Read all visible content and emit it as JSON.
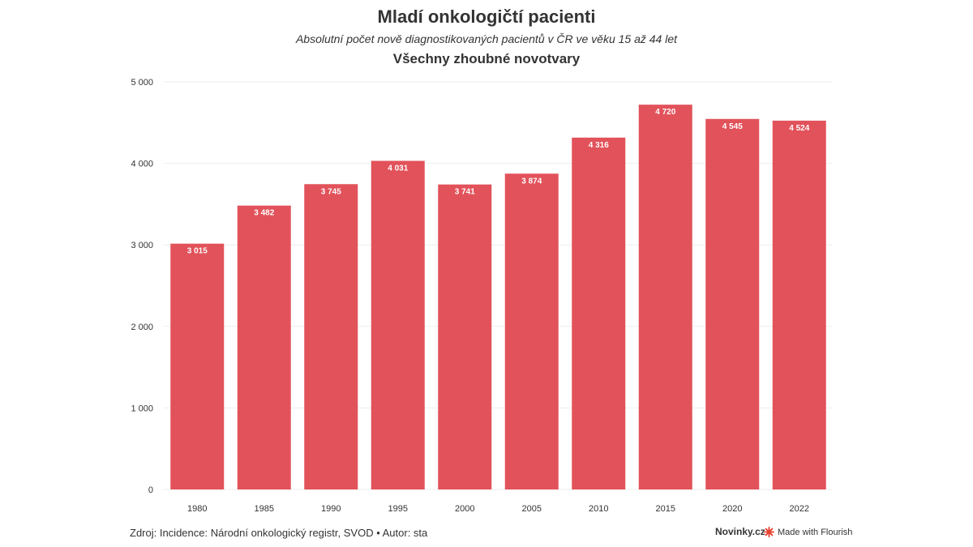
{
  "header": {
    "title": "Mladí onkologičtí pacienti",
    "subtitle": "Absolutní počet nově diagnostikovaných pacientů v ČR ve věku 15 až 44 let",
    "subtitle2": "Všechny zhoubné novotvary"
  },
  "footer": {
    "source": "Zdroj: Incidence: Národní onkologický registr, SVOD • Autor: sta",
    "brand": "Novinky.cz",
    "made_with": "Made with Flourish"
  },
  "colors": {
    "bar": "#e2525a",
    "grid": "#eeeeee",
    "axis_text": "#333333",
    "flourish_icon": "#e8412f"
  },
  "chart_data": {
    "type": "bar",
    "categories": [
      "1980",
      "1985",
      "1990",
      "1995",
      "2000",
      "2005",
      "2010",
      "2015",
      "2020",
      "2022"
    ],
    "values": [
      3015,
      3482,
      3745,
      4031,
      3741,
      3874,
      4316,
      4720,
      4545,
      4524
    ],
    "value_labels": [
      "3 015",
      "3 482",
      "3 745",
      "4 031",
      "3 741",
      "3 874",
      "4 316",
      "4 720",
      "4 545",
      "4 524"
    ],
    "ylim": [
      0,
      5000
    ],
    "yticks": [
      0,
      1000,
      2000,
      3000,
      4000,
      5000
    ],
    "ytick_labels": [
      "0",
      "1 000",
      "2 000",
      "3 000",
      "4 000",
      "5 000"
    ],
    "grid": true,
    "legend": "none"
  }
}
